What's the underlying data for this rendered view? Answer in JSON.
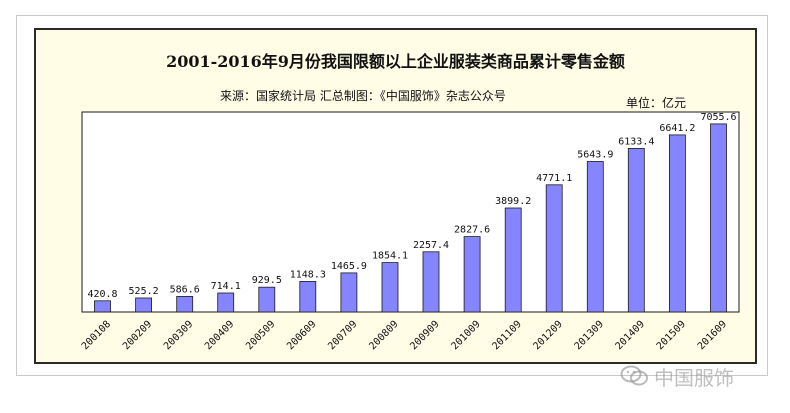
{
  "chart_data": {
    "type": "bar",
    "title": "2001-2016年9月份我国限额以上企业服装类商品累计零售金额",
    "subtitle": "来源：国家统计局    汇总制图：《中国服饰》杂志公众号",
    "unit_label": "单位：亿元",
    "categories": [
      "200108",
      "200209",
      "200309",
      "200409",
      "200509",
      "200609",
      "200709",
      "200809",
      "200909",
      "201009",
      "201109",
      "201209",
      "201309",
      "201409",
      "201509",
      "201609"
    ],
    "values": [
      420.8,
      525.2,
      586.6,
      714.1,
      929.5,
      1148.3,
      1465.9,
      1854.1,
      2257.4,
      2827.6,
      3899.2,
      4771.1,
      5643.9,
      6133.4,
      6641.2,
      7055.6
    ],
    "value_labels": [
      "420.8",
      "525.2",
      "586.6",
      "714.1",
      "929.5",
      "1148.3",
      "1465.9",
      "1854.1",
      "2257.4",
      "2827.6",
      "3899.2",
      "4771.1",
      "5643.9",
      "6133.4",
      "6641.2",
      "7055.6"
    ],
    "ylim": [
      0,
      7500
    ],
    "grid": false,
    "colors": {
      "bar_fill": "#8585ff",
      "bar_stroke": "#1a1a1a",
      "plot_background": "#ffffff",
      "panel_background": "#fffde6"
    }
  },
  "watermark": {
    "text": "中国服饰",
    "icon": "wechat-logo-icon"
  }
}
